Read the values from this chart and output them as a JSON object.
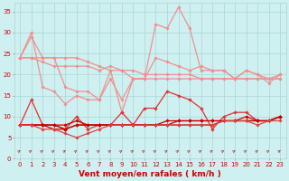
{
  "xlabel": "Vent moyen/en rafales ( km/h )",
  "bg_color": "#cff0f0",
  "grid_color": "#aad4d4",
  "x_ticks": [
    0,
    1,
    2,
    3,
    4,
    5,
    6,
    7,
    8,
    9,
    10,
    11,
    12,
    13,
    14,
    15,
    16,
    17,
    18,
    19,
    20,
    21,
    22,
    23
  ],
  "ylim": [
    0,
    37
  ],
  "yticks": [
    0,
    5,
    10,
    15,
    20,
    25,
    30,
    35
  ],
  "series": [
    {
      "color": "#f09090",
      "marker": "D",
      "markersize": 1.8,
      "linewidth": 0.9,
      "y": [
        24,
        29,
        24,
        24,
        17,
        16,
        16,
        14,
        21,
        11,
        19,
        19,
        24,
        23,
        22,
        21,
        22,
        21,
        21,
        19,
        21,
        20,
        19,
        20
      ]
    },
    {
      "color": "#f09090",
      "marker": "D",
      "markersize": 1.8,
      "linewidth": 0.9,
      "y": [
        24,
        24,
        23,
        22,
        22,
        22,
        22,
        21,
        22,
        21,
        19,
        19,
        19,
        19,
        19,
        19,
        19,
        19,
        19,
        19,
        19,
        19,
        19,
        19
      ]
    },
    {
      "color": "#f09090",
      "marker": "D",
      "markersize": 1.8,
      "linewidth": 0.9,
      "y": [
        24,
        24,
        24,
        24,
        24,
        24,
        23,
        22,
        21,
        21,
        21,
        20,
        20,
        20,
        20,
        20,
        19,
        19,
        19,
        19,
        19,
        19,
        19,
        19
      ]
    },
    {
      "color": "#f09090",
      "marker": "D",
      "markersize": 1.8,
      "linewidth": 0.9,
      "y": [
        24,
        30,
        17,
        16,
        13,
        15,
        14,
        14,
        19,
        14,
        19,
        19,
        32,
        31,
        36,
        31,
        21,
        21,
        21,
        19,
        21,
        20,
        18,
        20
      ]
    },
    {
      "color": "#dd3333",
      "marker": "D",
      "markersize": 1.8,
      "linewidth": 0.9,
      "y": [
        8,
        14,
        8,
        8,
        7,
        10,
        7,
        8,
        8,
        11,
        8,
        12,
        12,
        16,
        15,
        14,
        12,
        7,
        10,
        11,
        11,
        9,
        9,
        10
      ]
    },
    {
      "color": "#cc0000",
      "marker": "D",
      "markersize": 1.8,
      "linewidth": 0.9,
      "y": [
        8,
        8,
        8,
        8,
        8,
        9,
        8,
        8,
        8,
        8,
        8,
        8,
        8,
        9,
        9,
        9,
        9,
        9,
        9,
        9,
        9,
        9,
        9,
        10
      ]
    },
    {
      "color": "#cc0000",
      "marker": "D",
      "markersize": 1.8,
      "linewidth": 0.9,
      "y": [
        8,
        8,
        8,
        8,
        7,
        8,
        8,
        8,
        8,
        8,
        8,
        8,
        8,
        8,
        9,
        9,
        9,
        9,
        9,
        9,
        10,
        9,
        9,
        10
      ]
    },
    {
      "color": "#cc0000",
      "marker": "D",
      "markersize": 1.8,
      "linewidth": 0.9,
      "y": [
        8,
        8,
        8,
        7,
        7,
        8,
        8,
        8,
        8,
        8,
        8,
        8,
        8,
        8,
        8,
        8,
        8,
        8,
        9,
        9,
        9,
        9,
        9,
        10
      ]
    },
    {
      "color": "#dd4444",
      "marker": "D",
      "markersize": 1.8,
      "linewidth": 0.9,
      "y": [
        8,
        8,
        7,
        7,
        6,
        5,
        6,
        7,
        8,
        8,
        8,
        8,
        8,
        8,
        8,
        8,
        8,
        8,
        9,
        9,
        9,
        8,
        9,
        9
      ]
    }
  ],
  "tick_fontsize": 5.0,
  "xlabel_fontsize": 6.5
}
